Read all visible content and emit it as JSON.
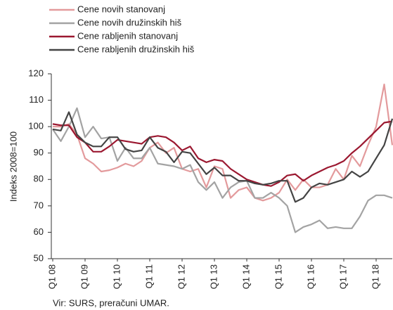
{
  "chart_data": {
    "type": "line",
    "y_label": "Indeks 2008=100",
    "source": "Vir: SURS, preračuni UMAR.",
    "categories": [
      "Q1 08",
      null,
      null,
      null,
      "Q1 09",
      null,
      null,
      null,
      "Q1 10",
      null,
      null,
      null,
      "Q1 11",
      null,
      null,
      null,
      "Q1 12",
      null,
      null,
      null,
      "Q1 13",
      null,
      null,
      null,
      "Q1 14",
      null,
      null,
      null,
      "Q1 15",
      null,
      null,
      null,
      "Q1 16",
      null,
      null,
      null,
      "Q1 17",
      null,
      null,
      null,
      "Q1 18",
      null,
      null
    ],
    "series": [
      {
        "name": "Cene novih stanovanj",
        "color": "#e39a9c",
        "values": [
          100,
          100,
          101,
          97,
          88,
          86,
          83,
          83.5,
          84.5,
          86,
          85,
          87,
          92,
          94,
          90,
          92,
          84,
          83,
          84,
          77,
          85,
          84,
          73,
          76,
          77,
          73,
          72,
          73,
          75,
          80,
          76,
          80,
          77,
          77,
          78,
          84,
          80,
          89,
          85,
          93,
          100,
          116,
          93
        ]
      },
      {
        "name": "Cene novih družinskih hiš",
        "color": "#a3a3a3",
        "values": [
          99,
          94.5,
          100,
          107,
          96,
          100,
          95.5,
          96,
          87,
          92,
          88,
          88,
          92,
          86,
          85.5,
          85,
          84,
          85.5,
          79,
          76,
          79,
          73,
          77,
          79,
          79.5,
          73,
          73,
          75,
          73,
          70,
          60,
          62,
          63,
          64.5,
          61.5,
          62,
          61.5,
          61.5,
          66,
          72,
          74,
          74,
          73
        ]
      },
      {
        "name": "Cene rabljenih stanovanj",
        "color": "#9b1830",
        "values": [
          101,
          100.5,
          100.5,
          96,
          94,
          90.5,
          90.5,
          92.5,
          95,
          94.5,
          94,
          93.5,
          96,
          96.5,
          96,
          94,
          91,
          92.5,
          88,
          86.5,
          87.5,
          87,
          84,
          82,
          80,
          79,
          78,
          77.5,
          79,
          81.5,
          82,
          79.5,
          81.5,
          83,
          84.5,
          85.5,
          87,
          90,
          92.5,
          95.5,
          98.5,
          101.5,
          102
        ]
      },
      {
        "name": "Cene rabljenih družinskih hiš",
        "color": "#444444",
        "values": [
          99,
          98.5,
          105.5,
          97,
          94,
          92.5,
          92.5,
          96,
          96,
          91.5,
          90.5,
          91,
          96,
          92,
          90.5,
          86.5,
          90.5,
          90,
          86,
          82,
          84.5,
          81.5,
          81.5,
          79.5,
          79.5,
          78.5,
          78,
          78.5,
          79.5,
          79.5,
          71.5,
          73,
          77,
          78.5,
          78,
          79,
          80,
          83,
          81,
          83,
          88,
          93,
          103
        ]
      }
    ],
    "ylim": [
      50,
      120
    ],
    "yticks": [
      50,
      60,
      70,
      80,
      90,
      100,
      110,
      120
    ]
  }
}
